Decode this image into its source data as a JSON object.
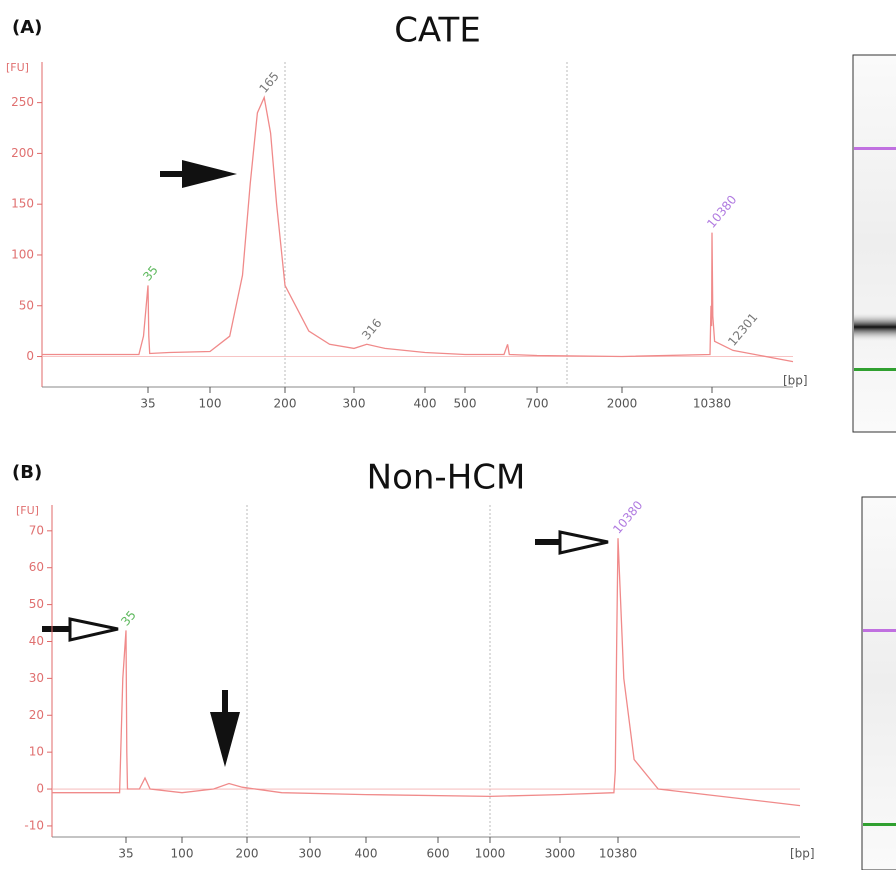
{
  "chart_data": [
    {
      "type": "line",
      "panel": "(A)",
      "title": "CATE",
      "ylabel": "[FU]",
      "xlabel": "[bp]",
      "color": "#f08a8a",
      "axis_color": "#e06a6a",
      "log": true,
      "xlim": [
        25,
        20000
      ],
      "ylim": [
        -30,
        290
      ],
      "xticks": [
        35,
        100,
        200,
        300,
        400,
        500,
        700,
        2000,
        10380
      ],
      "yticks": [
        0,
        50,
        100,
        150,
        200,
        250
      ],
      "x": [
        25,
        34,
        34.5,
        35,
        35.5,
        36,
        50,
        100,
        120,
        135,
        145,
        155,
        165,
        175,
        185,
        200,
        230,
        260,
        300,
        316,
        340,
        400,
        500,
        600,
        610,
        615,
        700,
        2000,
        10000,
        10200,
        10300,
        10380,
        10450,
        10600,
        12301,
        20000
      ],
      "values": [
        2,
        2,
        20,
        70,
        20,
        3,
        4,
        5,
        20,
        80,
        170,
        240,
        255,
        220,
        150,
        70,
        25,
        12,
        8,
        12,
        8,
        4,
        2,
        2,
        12,
        2,
        1,
        0,
        2,
        50,
        30,
        122,
        40,
        15,
        6,
        -5
      ],
      "annotations": [
        {
          "text": "35",
          "x": 35,
          "y": 70,
          "color": "#5cb85c"
        },
        {
          "text": "165",
          "x": 165,
          "y": 255,
          "color": "#777777"
        },
        {
          "text": "316",
          "x": 316,
          "y": 12,
          "color": "#777777"
        },
        {
          "text": "10380",
          "x": 10380,
          "y": 122,
          "color": "#b07ae0"
        },
        {
          "text": "12301",
          "x": 12301,
          "y": 6,
          "color": "#777777"
        }
      ]
    },
    {
      "type": "line",
      "panel": "(B)",
      "title": "Non-HCM",
      "ylabel": "[FU]",
      "xlabel": "[bp]",
      "color": "#f08a8a",
      "axis_color": "#e06a6a",
      "log": true,
      "xlim": [
        25,
        20000
      ],
      "ylim": [
        -13,
        77
      ],
      "xticks": [
        35,
        100,
        200,
        300,
        400,
        600,
        1000,
        3000,
        10380
      ],
      "yticks": [
        -10,
        0,
        10,
        20,
        30,
        40,
        50,
        60,
        70
      ],
      "x": [
        25,
        34,
        34.5,
        35,
        35.5,
        36,
        45,
        50,
        55,
        100,
        140,
        165,
        190,
        250,
        400,
        1000,
        3000,
        9500,
        9800,
        10100,
        10380,
        10600,
        11000,
        12000,
        20000
      ],
      "values": [
        -1,
        -1,
        30,
        43,
        10,
        0,
        0,
        3,
        0,
        -1,
        0,
        1.5,
        0.5,
        -1,
        -1.5,
        -2,
        -1.5,
        -1,
        5,
        40,
        68,
        30,
        8,
        0,
        -4.5
      ],
      "annotations": [
        {
          "text": "35",
          "x": 35,
          "y": 43,
          "color": "#5cb85c"
        },
        {
          "text": "10380",
          "x": 10380,
          "y": 68,
          "color": "#b07ae0"
        }
      ]
    }
  ]
}
